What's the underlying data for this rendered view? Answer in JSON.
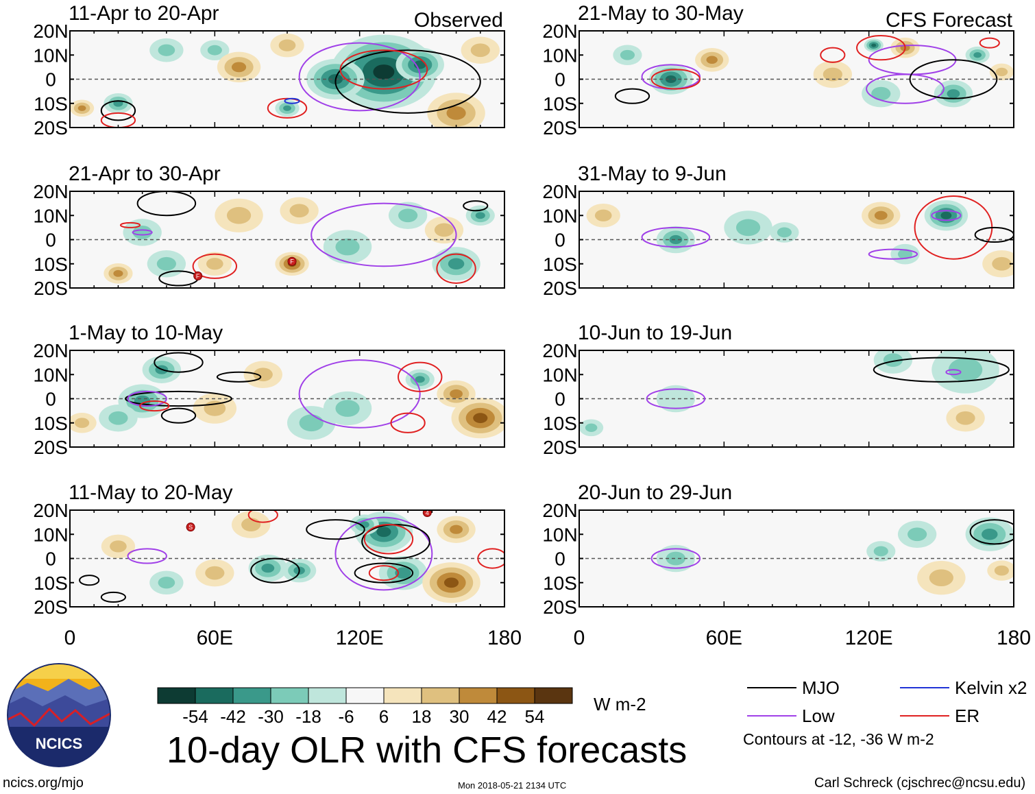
{
  "figure_title": "10-day OLR with CFS forecasts",
  "column_labels": {
    "observed": "Observed",
    "forecast": "CFS Forecast"
  },
  "lat_tick_labels": [
    "20N",
    "10N",
    "0",
    "10S",
    "20S"
  ],
  "lon_tick_labels": [
    "0",
    "60E",
    "120E",
    "180"
  ],
  "colorbar": {
    "units": "W m-2",
    "tick_labels": [
      "-54",
      "-42",
      "-30",
      "-18",
      "-6",
      "6",
      "18",
      "30",
      "42",
      "54"
    ],
    "colors": [
      "#0d3b33",
      "#1a6b5e",
      "#3a998a",
      "#7ccbb8",
      "#bfe6dc",
      "#f7f7f7",
      "#f5e4bc",
      "#dfc07f",
      "#bf8a3a",
      "#8c5614",
      "#5a3510"
    ]
  },
  "contour_legend": {
    "items": [
      {
        "label": "MJO",
        "color": "#000000"
      },
      {
        "label": "Kelvin x2",
        "color": "#1f33d6"
      },
      {
        "label": "Low",
        "color": "#a040e8"
      },
      {
        "label": "ER",
        "color": "#e02020"
      }
    ],
    "note": "Contours at -12, -36 W m-2"
  },
  "footer": {
    "url": "ncics.org/mjo",
    "timestamp": "Mon 2018-05-21 2134 UTC",
    "author": "Carl Schreck (cjschrec@ncsu.edu)"
  },
  "logo_text": "NCICS",
  "chart_data": {
    "type": "heatmap",
    "variable": "10-day mean OLR anomaly (filled) with filtered-wave contours",
    "units": "W m-2",
    "x_range": [
      0,
      180
    ],
    "y_range": [
      -20,
      20
    ],
    "panels": [
      {
        "label": "11-Apr to 20-Apr",
        "source": "Observed",
        "blobs": [
          {
            "lon": 130,
            "lat": 3,
            "value": -54,
            "r": 22
          },
          {
            "lon": 110,
            "lat": 0,
            "value": -42,
            "r": 12
          },
          {
            "lon": 145,
            "lat": 6,
            "value": -42,
            "r": 10
          },
          {
            "lon": 20,
            "lat": -10,
            "value": -24,
            "r": 6
          },
          {
            "lon": 90,
            "lat": -12,
            "value": -30,
            "r": 5
          },
          {
            "lon": 40,
            "lat": 12,
            "value": -18,
            "r": 7
          },
          {
            "lon": 60,
            "lat": 12,
            "value": -18,
            "r": 6
          },
          {
            "lon": 70,
            "lat": 5,
            "value": 24,
            "r": 9
          },
          {
            "lon": 160,
            "lat": -14,
            "value": 24,
            "r": 12
          },
          {
            "lon": 5,
            "lat": -12,
            "value": 24,
            "r": 5
          },
          {
            "lon": 170,
            "lat": 12,
            "value": 18,
            "r": 8
          },
          {
            "lon": 90,
            "lat": 14,
            "value": 18,
            "r": 7
          }
        ],
        "contours": [
          {
            "type": "Low",
            "lon": 120,
            "lat": 1,
            "rx": 25,
            "ry": 14
          },
          {
            "type": "MJO",
            "lon": 140,
            "lat": -1,
            "rx": 30,
            "ry": 13
          },
          {
            "type": "ER",
            "lon": 130,
            "lat": 4,
            "rx": 18,
            "ry": 8
          },
          {
            "type": "ER",
            "lon": 90,
            "lat": -12,
            "rx": 8,
            "ry": 4
          },
          {
            "type": "Kelvin x2",
            "lon": 92,
            "lat": -9,
            "rx": 3,
            "ry": 1
          },
          {
            "type": "MJO",
            "lon": 20,
            "lat": -13,
            "rx": 7,
            "ry": 4
          },
          {
            "type": "ER",
            "lon": 20,
            "lat": -17,
            "rx": 7,
            "ry": 3
          }
        ],
        "storms": []
      },
      {
        "label": "21-Apr to 30-Apr",
        "source": "Observed",
        "blobs": [
          {
            "lon": 160,
            "lat": -10,
            "value": -30,
            "r": 10
          },
          {
            "lon": 170,
            "lat": 10,
            "value": -24,
            "r": 6
          },
          {
            "lon": 30,
            "lat": 3,
            "value": -18,
            "r": 8
          },
          {
            "lon": 40,
            "lat": -10,
            "value": -18,
            "r": 8
          },
          {
            "lon": 115,
            "lat": -3,
            "value": -18,
            "r": 10
          },
          {
            "lon": 140,
            "lat": 10,
            "value": -12,
            "r": 8
          },
          {
            "lon": 92,
            "lat": -10,
            "value": 36,
            "r": 7
          },
          {
            "lon": 70,
            "lat": 10,
            "value": 18,
            "r": 10
          },
          {
            "lon": 95,
            "lat": 12,
            "value": 18,
            "r": 8
          },
          {
            "lon": 20,
            "lat": -14,
            "value": 24,
            "r": 6
          },
          {
            "lon": 60,
            "lat": -10,
            "value": 18,
            "r": 7
          },
          {
            "lon": 155,
            "lat": 4,
            "value": 18,
            "r": 8
          }
        ],
        "contours": [
          {
            "type": "Low",
            "lon": 130,
            "lat": 2,
            "rx": 30,
            "ry": 13
          },
          {
            "type": "MJO",
            "lon": 40,
            "lat": 15,
            "rx": 12,
            "ry": 5
          },
          {
            "type": "MJO",
            "lon": 45,
            "lat": -16,
            "rx": 8,
            "ry": 3
          },
          {
            "type": "ER",
            "lon": 60,
            "lat": -11,
            "rx": 9,
            "ry": 5
          },
          {
            "type": "ER",
            "lon": 160,
            "lat": -12,
            "rx": 8,
            "ry": 6
          },
          {
            "type": "Low",
            "lon": 30,
            "lat": 3,
            "rx": 4,
            "ry": 1
          },
          {
            "type": "ER",
            "lon": 25,
            "lat": 6,
            "rx": 4,
            "ry": 1
          },
          {
            "type": "MJO",
            "lon": 168,
            "lat": 14,
            "rx": 5,
            "ry": 2
          }
        ],
        "storms": [
          {
            "lon": 92,
            "lat": -9,
            "label": "F"
          },
          {
            "lon": 53,
            "lat": -15,
            "label": "F"
          }
        ]
      },
      {
        "label": "1-May to 10-May",
        "source": "Observed",
        "blobs": [
          {
            "lon": 30,
            "lat": -1,
            "value": -30,
            "r": 10
          },
          {
            "lon": 38,
            "lat": 12,
            "value": -24,
            "r": 8
          },
          {
            "lon": 20,
            "lat": -8,
            "value": -18,
            "r": 8
          },
          {
            "lon": 145,
            "lat": 8,
            "value": -24,
            "r": 6
          },
          {
            "lon": 115,
            "lat": -4,
            "value": -18,
            "r": 10
          },
          {
            "lon": 100,
            "lat": -10,
            "value": -12,
            "r": 10
          },
          {
            "lon": 170,
            "lat": -8,
            "value": 42,
            "r": 12
          },
          {
            "lon": 160,
            "lat": 2,
            "value": 24,
            "r": 8
          },
          {
            "lon": 60,
            "lat": -4,
            "value": 18,
            "r": 9
          },
          {
            "lon": 80,
            "lat": 10,
            "value": 18,
            "r": 8
          },
          {
            "lon": 5,
            "lat": -10,
            "value": 18,
            "r": 6
          }
        ],
        "contours": [
          {
            "type": "Low",
            "lon": 120,
            "lat": 2,
            "rx": 25,
            "ry": 14
          },
          {
            "type": "ER",
            "lon": 145,
            "lat": 9,
            "rx": 9,
            "ry": 6
          },
          {
            "type": "ER",
            "lon": 140,
            "lat": -10,
            "rx": 7,
            "ry": 4
          },
          {
            "type": "MJO",
            "lon": 45,
            "lat": 15,
            "rx": 10,
            "ry": 4
          },
          {
            "type": "MJO",
            "lon": 70,
            "lat": 9,
            "rx": 9,
            "ry": 2
          },
          {
            "type": "MJO",
            "lon": 45,
            "lat": 0,
            "rx": 22,
            "ry": 3
          },
          {
            "type": "MJO",
            "lon": 45,
            "lat": -7,
            "rx": 7,
            "ry": 3
          },
          {
            "type": "Low",
            "lon": 32,
            "lat": 0,
            "rx": 8,
            "ry": 3
          },
          {
            "type": "ER",
            "lon": 35,
            "lat": -3,
            "rx": 6,
            "ry": 2
          }
        ],
        "storms": []
      },
      {
        "label": "11-May to 20-May",
        "source": "Observed",
        "blobs": [
          {
            "lon": 130,
            "lat": 11,
            "value": -42,
            "r": 12
          },
          {
            "lon": 138,
            "lat": -6,
            "value": -30,
            "r": 10
          },
          {
            "lon": 82,
            "lat": -4,
            "value": -30,
            "r": 8
          },
          {
            "lon": 95,
            "lat": -5,
            "value": -24,
            "r": 7
          },
          {
            "lon": 122,
            "lat": 14,
            "value": -30,
            "r": 6
          },
          {
            "lon": 158,
            "lat": -10,
            "value": 36,
            "r": 12
          },
          {
            "lon": 160,
            "lat": 12,
            "value": 24,
            "r": 8
          },
          {
            "lon": 60,
            "lat": -6,
            "value": 18,
            "r": 8
          },
          {
            "lon": 20,
            "lat": 5,
            "value": 18,
            "r": 7
          },
          {
            "lon": 75,
            "lat": 14,
            "value": 12,
            "r": 8
          },
          {
            "lon": 40,
            "lat": -10,
            "value": -12,
            "r": 7
          }
        ],
        "contours": [
          {
            "type": "Low",
            "lon": 130,
            "lat": 2,
            "rx": 20,
            "ry": 15
          },
          {
            "type": "MJO",
            "lon": 135,
            "lat": 7,
            "rx": 14,
            "ry": 7
          },
          {
            "type": "MJO",
            "lon": 85,
            "lat": -5,
            "rx": 10,
            "ry": 5
          },
          {
            "type": "MJO",
            "lon": 110,
            "lat": 12,
            "rx": 12,
            "ry": 4
          },
          {
            "type": "MJO",
            "lon": 130,
            "lat": -6,
            "rx": 12,
            "ry": 4
          },
          {
            "type": "ER",
            "lon": 132,
            "lat": 8,
            "rx": 10,
            "ry": 6
          },
          {
            "type": "ER",
            "lon": 130,
            "lat": -6,
            "rx": 6,
            "ry": 3
          },
          {
            "type": "ER",
            "lon": 80,
            "lat": 18,
            "rx": 6,
            "ry": 3
          },
          {
            "type": "Low",
            "lon": 32,
            "lat": 1,
            "rx": 8,
            "ry": 3
          },
          {
            "type": "MJO",
            "lon": 8,
            "lat": -9,
            "rx": 4,
            "ry": 2
          },
          {
            "type": "MJO",
            "lon": 18,
            "lat": -16,
            "rx": 5,
            "ry": 2
          },
          {
            "type": "ER",
            "lon": 175,
            "lat": 0,
            "rx": 6,
            "ry": 4
          }
        ],
        "storms": [
          {
            "lon": 50,
            "lat": 13,
            "label": "S"
          },
          {
            "lon": 148,
            "lat": 19,
            "label": "4"
          }
        ]
      },
      {
        "label": "21-May to 30-May",
        "source": "CFS Forecast",
        "blobs": [
          {
            "lon": 38,
            "lat": 0,
            "value": -42,
            "r": 9
          },
          {
            "lon": 122,
            "lat": 14,
            "value": -42,
            "r": 4
          },
          {
            "lon": 155,
            "lat": -6,
            "value": -30,
            "r": 8
          },
          {
            "lon": 165,
            "lat": 10,
            "value": -24,
            "r": 5
          },
          {
            "lon": 125,
            "lat": -6,
            "value": -18,
            "r": 8
          },
          {
            "lon": 20,
            "lat": 10,
            "value": -18,
            "r": 6
          },
          {
            "lon": 55,
            "lat": 8,
            "value": 24,
            "r": 7
          },
          {
            "lon": 135,
            "lat": 13,
            "value": 24,
            "r": 6
          },
          {
            "lon": 105,
            "lat": 2,
            "value": 12,
            "r": 8
          },
          {
            "lon": 175,
            "lat": 3,
            "value": 18,
            "r": 5
          }
        ],
        "contours": [
          {
            "type": "Low",
            "lon": 38,
            "lat": 1,
            "rx": 12,
            "ry": 5
          },
          {
            "type": "ER",
            "lon": 40,
            "lat": 0,
            "rx": 10,
            "ry": 4
          },
          {
            "type": "MJO",
            "lon": 22,
            "lat": -7,
            "rx": 7,
            "ry": 3
          },
          {
            "type": "Low",
            "lon": 138,
            "lat": 8,
            "rx": 18,
            "ry": 6
          },
          {
            "type": "Low",
            "lon": 135,
            "lat": -4,
            "rx": 16,
            "ry": 6
          },
          {
            "type": "MJO",
            "lon": 155,
            "lat": 0,
            "rx": 18,
            "ry": 8
          },
          {
            "type": "ER",
            "lon": 105,
            "lat": 10,
            "rx": 5,
            "ry": 3
          },
          {
            "type": "ER",
            "lon": 170,
            "lat": 15,
            "rx": 4,
            "ry": 2
          },
          {
            "type": "ER",
            "lon": 125,
            "lat": 13,
            "rx": 10,
            "ry": 5
          }
        ],
        "storms": []
      },
      {
        "label": "31-May to 9-Jun",
        "source": "CFS Forecast",
        "blobs": [
          {
            "lon": 40,
            "lat": 0,
            "value": -30,
            "r": 8
          },
          {
            "lon": 152,
            "lat": 10,
            "value": -36,
            "r": 9
          },
          {
            "lon": 70,
            "lat": 5,
            "value": -18,
            "r": 10
          },
          {
            "lon": 85,
            "lat": 3,
            "value": -18,
            "r": 6
          },
          {
            "lon": 135,
            "lat": -6,
            "value": -12,
            "r": 6
          },
          {
            "lon": 125,
            "lat": 10,
            "value": 24,
            "r": 8
          },
          {
            "lon": 175,
            "lat": -10,
            "value": 12,
            "r": 8
          },
          {
            "lon": 10,
            "lat": 10,
            "value": 12,
            "r": 7
          }
        ],
        "contours": [
          {
            "type": "ER",
            "lon": 155,
            "lat": 5,
            "rx": 16,
            "ry": 13
          },
          {
            "type": "Low",
            "lon": 152,
            "lat": 10,
            "rx": 6,
            "ry": 2
          },
          {
            "type": "MJO",
            "lon": 172,
            "lat": 2,
            "rx": 8,
            "ry": 3
          },
          {
            "type": "Low",
            "lon": 40,
            "lat": 1,
            "rx": 14,
            "ry": 4
          },
          {
            "type": "Low",
            "lon": 130,
            "lat": -6,
            "rx": 10,
            "ry": 2
          }
        ],
        "storms": []
      },
      {
        "label": "10-Jun to 19-Jun",
        "source": "CFS Forecast",
        "blobs": [
          {
            "lon": 160,
            "lat": 12,
            "value": -18,
            "r": 14
          },
          {
            "lon": 130,
            "lat": 16,
            "value": -12,
            "r": 8
          },
          {
            "lon": 40,
            "lat": 0,
            "value": -6,
            "r": 8
          },
          {
            "lon": 160,
            "lat": -8,
            "value": 18,
            "r": 8
          },
          {
            "lon": 5,
            "lat": -12,
            "value": -12,
            "r": 5
          }
        ],
        "contours": [
          {
            "type": "MJO",
            "lon": 150,
            "lat": 12,
            "rx": 28,
            "ry": 5
          },
          {
            "type": "Low",
            "lon": 155,
            "lat": 11,
            "rx": 3,
            "ry": 1
          },
          {
            "type": "Low",
            "lon": 40,
            "lat": 0,
            "rx": 12,
            "ry": 4
          }
        ],
        "storms": []
      },
      {
        "label": "20-Jun to 29-Jun",
        "source": "CFS Forecast",
        "blobs": [
          {
            "lon": 170,
            "lat": 10,
            "value": -30,
            "r": 10
          },
          {
            "lon": 140,
            "lat": 10,
            "value": -12,
            "r": 8
          },
          {
            "lon": 40,
            "lat": 0,
            "value": -12,
            "r": 8
          },
          {
            "lon": 150,
            "lat": -8,
            "value": 18,
            "r": 10
          },
          {
            "lon": 175,
            "lat": -5,
            "value": 12,
            "r": 6
          },
          {
            "lon": 125,
            "lat": 3,
            "value": -12,
            "r": 6
          }
        ],
        "contours": [
          {
            "type": "MJO",
            "lon": 172,
            "lat": 11,
            "rx": 10,
            "ry": 5
          },
          {
            "type": "Low",
            "lon": 40,
            "lat": 0,
            "rx": 10,
            "ry": 4
          }
        ],
        "storms": []
      }
    ]
  }
}
